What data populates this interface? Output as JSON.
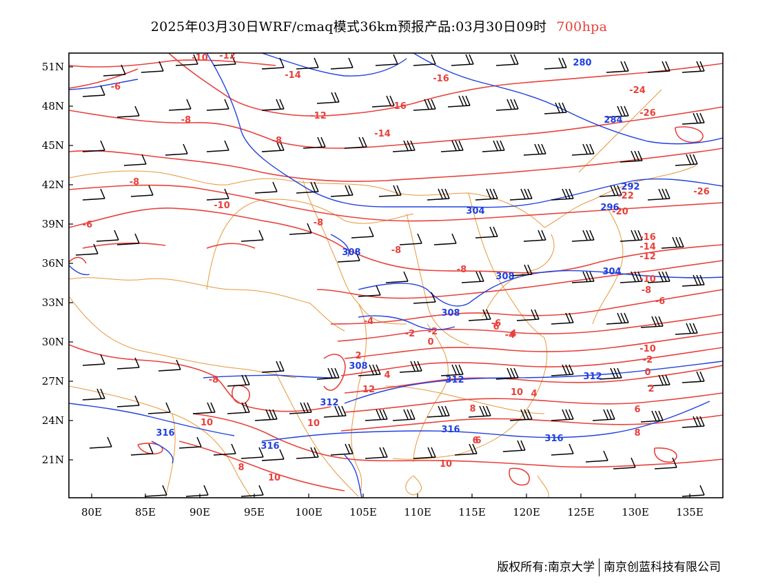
{
  "title": {
    "main": "2025年03月30日WRF/cmaq模式36km预报产品:03月30日09时",
    "level": "700hpa"
  },
  "colors": {
    "temperature_contour": "#e8403a",
    "geopotential_contour": "#2040e0",
    "boundary": "#e8963a",
    "wind_barb": "#000000"
  },
  "axes": {
    "x_ticks": [
      "80E",
      "85E",
      "90E",
      "95E",
      "100E",
      "105E",
      "110E",
      "115E",
      "120E",
      "125E",
      "130E",
      "135E"
    ],
    "y_ticks": [
      "51N",
      "48N",
      "45N",
      "42N",
      "39N",
      "36N",
      "33N",
      "30N",
      "27N",
      "24N",
      "21N"
    ]
  },
  "temperature_labels": [
    "-6",
    "-8",
    "-10",
    "-12",
    "-14",
    "-16",
    "-24",
    "-26",
    "-8",
    "-8",
    "-10",
    "-12",
    "-14",
    "-16",
    "-8",
    "-8",
    "-6",
    "-8",
    "-8",
    "-4",
    "-2",
    "0",
    "2",
    "-2",
    "-4",
    "-6",
    "-10",
    "-12",
    "-14",
    "-16",
    "-20",
    "-22",
    "-26",
    "-8",
    "-6",
    "-10",
    "-2",
    "0",
    "2",
    "4",
    "6",
    "8",
    "10",
    "10",
    "10",
    "10",
    "12",
    "8",
    "6",
    "4",
    "6",
    "8",
    "10",
    "6",
    "4"
  ],
  "geopotential_labels": [
    "280",
    "284",
    "292",
    "296",
    "304",
    "308",
    "308",
    "308",
    "304",
    "312",
    "312",
    "312",
    "316",
    "316",
    "316",
    "316",
    "308"
  ],
  "footer": {
    "copyright": "版权所有:南京大学",
    "company": "南京创蓝科技有限公司"
  }
}
